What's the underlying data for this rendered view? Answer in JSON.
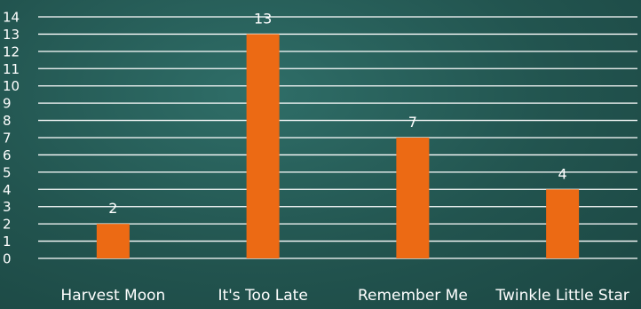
{
  "chart_data": {
    "type": "bar",
    "categories": [
      "Harvest Moon",
      "It's Too Late",
      "Remember Me",
      "Twinkle Little Star"
    ],
    "values": [
      2,
      13,
      7,
      4
    ],
    "data_labels": [
      "2",
      "13",
      "7",
      "4"
    ],
    "ylim": [
      0,
      14
    ],
    "yticks": [
      "0",
      "1",
      "2",
      "3",
      "4",
      "5",
      "6",
      "7",
      "8",
      "9",
      "10",
      "11",
      "12",
      "13",
      "14"
    ],
    "grid": true,
    "bar_color": "#ec6a14",
    "grid_color": "#ffffff",
    "text_color": "#ffffff"
  }
}
